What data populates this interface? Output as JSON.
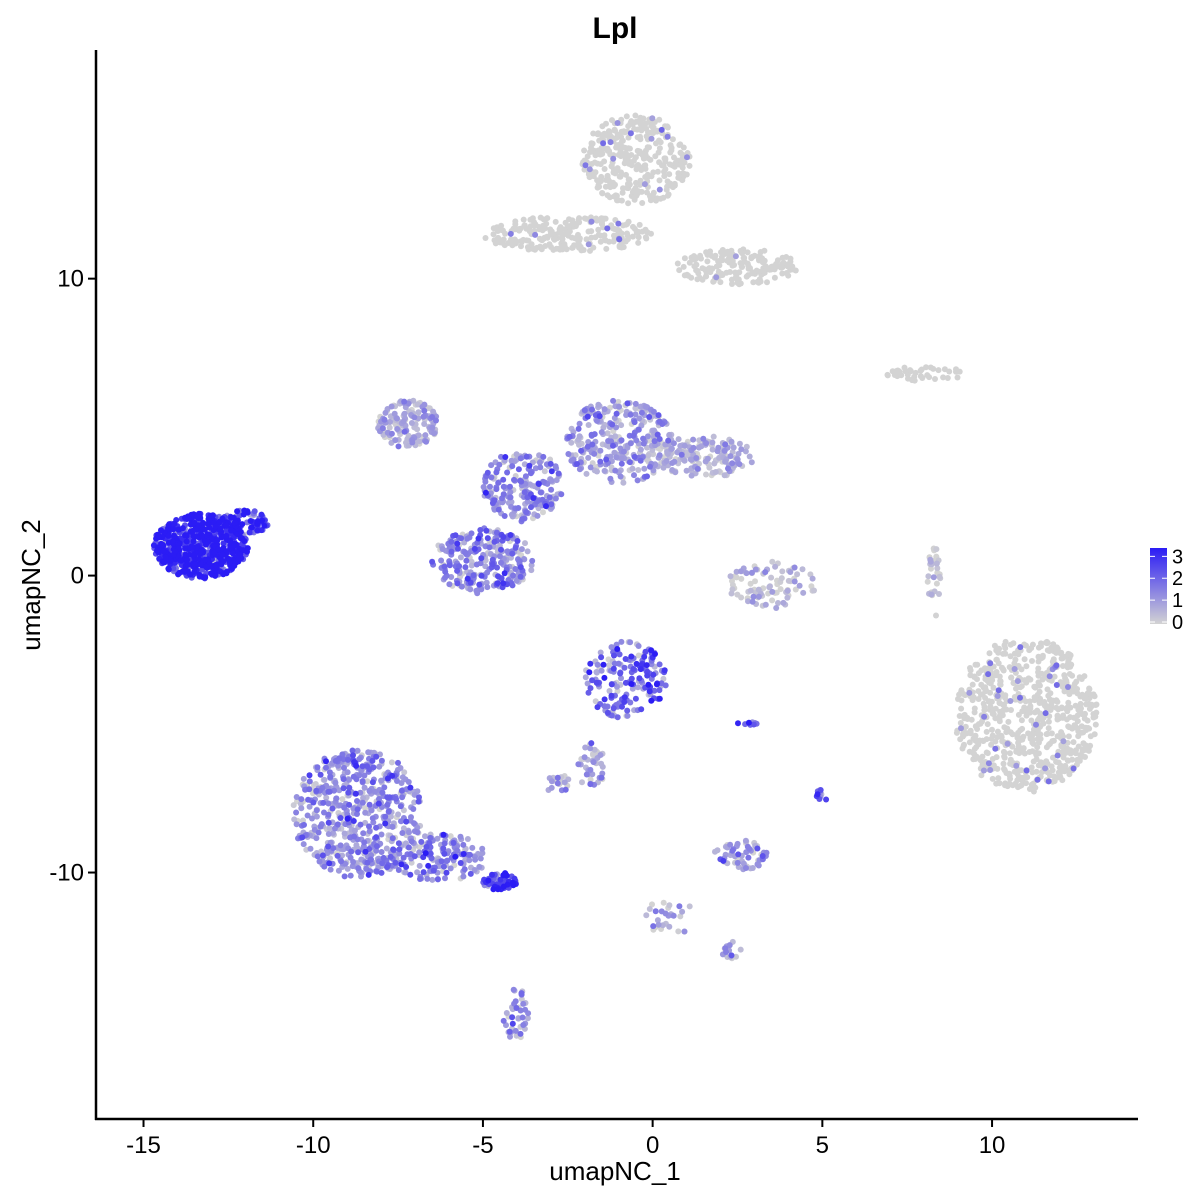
{
  "chart_data": {
    "type": "scatter",
    "title": "Lpl",
    "xlabel": "umapNC_1",
    "ylabel": "umapNC_2",
    "xlim": [
      -16.4,
      14.3
    ],
    "ylim": [
      -18.3,
      17.7
    ],
    "x_ticks": [
      -15,
      -10,
      -5,
      0,
      5,
      10
    ],
    "x_tick_labels": [
      "-15",
      "-10",
      "-5",
      "0",
      "5",
      "10"
    ],
    "y_ticks": [
      -10,
      0,
      10
    ],
    "y_tick_labels": [
      "-10",
      "0",
      "10"
    ],
    "grid": false,
    "legend": {
      "placement": "right",
      "type": "colorbar",
      "ticks": [
        0,
        1,
        2,
        3
      ],
      "tick_labels": [
        "0",
        "1",
        "2",
        "3"
      ],
      "low_color": "#d3d3d3",
      "high_color": "#2b1cf5"
    },
    "colors": {
      "low": "#d3d3d3",
      "high": "#2b1cf5"
    },
    "clusters": [
      {
        "x": -13.3,
        "y": 1.0,
        "rx": 1.4,
        "ry": 1.1,
        "n": 650,
        "expr": 2.7
      },
      {
        "x": -12.0,
        "y": 1.8,
        "rx": 0.7,
        "ry": 0.4,
        "n": 80,
        "expr": 2.5
      },
      {
        "x": -7.2,
        "y": 5.1,
        "rx": 0.9,
        "ry": 0.8,
        "n": 150,
        "expr": 0.5
      },
      {
        "x": -5.0,
        "y": 0.5,
        "rx": 1.5,
        "ry": 1.1,
        "n": 260,
        "expr": 1.1
      },
      {
        "x": -3.8,
        "y": 3.0,
        "rx": 1.2,
        "ry": 1.2,
        "n": 200,
        "expr": 1.0
      },
      {
        "x": -1.0,
        "y": 4.5,
        "rx": 1.6,
        "ry": 1.4,
        "n": 300,
        "expr": 0.8
      },
      {
        "x": 1.5,
        "y": 4.0,
        "rx": 1.5,
        "ry": 0.7,
        "n": 160,
        "expr": 0.5
      },
      {
        "x": -0.5,
        "y": 14.0,
        "rx": 1.6,
        "ry": 1.5,
        "n": 340,
        "expr": 0.05
      },
      {
        "x": -2.5,
        "y": 11.5,
        "rx": 2.5,
        "ry": 0.6,
        "n": 240,
        "expr": 0.05
      },
      {
        "x": 2.5,
        "y": 10.4,
        "rx": 1.8,
        "ry": 0.6,
        "n": 180,
        "expr": 0.05
      },
      {
        "x": 8.0,
        "y": 6.8,
        "rx": 1.2,
        "ry": 0.25,
        "n": 40,
        "expr": 0.1
      },
      {
        "x": 11.0,
        "y": -4.7,
        "rx": 2.1,
        "ry": 2.6,
        "n": 720,
        "expr": 0.05
      },
      {
        "x": 3.5,
        "y": -0.3,
        "rx": 1.3,
        "ry": 0.8,
        "n": 90,
        "expr": 0.3
      },
      {
        "x": 8.3,
        "y": -0.2,
        "rx": 0.2,
        "ry": 1.2,
        "n": 30,
        "expr": 0.2
      },
      {
        "x": -0.8,
        "y": -3.5,
        "rx": 1.2,
        "ry": 1.3,
        "n": 180,
        "expr": 1.5
      },
      {
        "x": -1.8,
        "y": -6.5,
        "rx": 0.4,
        "ry": 0.9,
        "n": 40,
        "expr": 0.8
      },
      {
        "x": -2.8,
        "y": -7.0,
        "rx": 0.4,
        "ry": 0.3,
        "n": 20,
        "expr": 0.6
      },
      {
        "x": -8.7,
        "y": -8.0,
        "rx": 1.9,
        "ry": 2.2,
        "n": 560,
        "expr": 1.0
      },
      {
        "x": -6.3,
        "y": -9.5,
        "rx": 1.4,
        "ry": 0.8,
        "n": 160,
        "expr": 1.1
      },
      {
        "x": -4.5,
        "y": -10.3,
        "rx": 0.5,
        "ry": 0.3,
        "n": 60,
        "expr": 2.2
      },
      {
        "x": -4.0,
        "y": -14.8,
        "rx": 0.4,
        "ry": 0.9,
        "n": 40,
        "expr": 1.0
      },
      {
        "x": 2.6,
        "y": -9.4,
        "rx": 0.8,
        "ry": 0.5,
        "n": 60,
        "expr": 0.9
      },
      {
        "x": 0.5,
        "y": -11.5,
        "rx": 0.7,
        "ry": 0.7,
        "n": 30,
        "expr": 0.5
      },
      {
        "x": 2.3,
        "y": -12.6,
        "rx": 0.3,
        "ry": 0.3,
        "n": 15,
        "expr": 0.7
      },
      {
        "x": 5.0,
        "y": -7.4,
        "rx": 0.2,
        "ry": 0.2,
        "n": 10,
        "expr": 1.5
      },
      {
        "x": 2.8,
        "y": -5.0,
        "rx": 0.3,
        "ry": 0.1,
        "n": 8,
        "expr": 2.0
      }
    ]
  }
}
